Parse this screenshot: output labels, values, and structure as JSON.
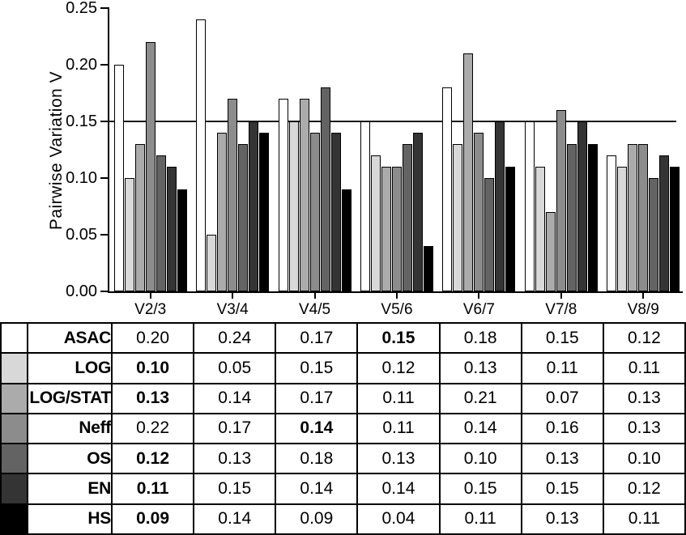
{
  "chart_data": {
    "type": "bar",
    "title": "",
    "xlabel": "",
    "ylabel": "Pairwise Variation V",
    "ylim": [
      0,
      0.25
    ],
    "ytick_step": 0.05,
    "yticks": [
      "0.25",
      "0.20",
      "0.15",
      "0.10",
      "0.05",
      "0.00"
    ],
    "reference_line": 0.15,
    "grid": false,
    "legend_position": "table-below",
    "categories": [
      "V2/3",
      "V3/4",
      "V4/5",
      "V5/6",
      "V6/7",
      "V7/8",
      "V8/9"
    ],
    "series": [
      {
        "name": "ASAC",
        "color": "#ffffff",
        "bold_col": 3,
        "values": [
          0.2,
          0.24,
          0.17,
          0.15,
          0.18,
          0.15,
          0.12
        ]
      },
      {
        "name": "LOG",
        "color": "#d8d8d8",
        "bold_col": 0,
        "values": [
          0.1,
          0.05,
          0.15,
          0.12,
          0.13,
          0.11,
          0.11
        ]
      },
      {
        "name": "LOG/STAT",
        "color": "#ababab",
        "bold_col": 0,
        "values": [
          0.13,
          0.14,
          0.17,
          0.11,
          0.21,
          0.07,
          0.13
        ]
      },
      {
        "name": "Neff",
        "color": "#8c8c8c",
        "bold_col": 2,
        "values": [
          0.22,
          0.17,
          0.14,
          0.11,
          0.14,
          0.16,
          0.13
        ]
      },
      {
        "name": "OS",
        "color": "#636363",
        "bold_col": 0,
        "values": [
          0.12,
          0.13,
          0.18,
          0.13,
          0.1,
          0.13,
          0.1
        ]
      },
      {
        "name": "EN",
        "color": "#343434",
        "bold_col": 0,
        "values": [
          0.11,
          0.15,
          0.14,
          0.14,
          0.15,
          0.15,
          0.12
        ]
      },
      {
        "name": "HS",
        "color": "#000000",
        "bold_col": 0,
        "values": [
          0.09,
          0.14,
          0.09,
          0.04,
          0.11,
          0.13,
          0.11
        ]
      }
    ]
  }
}
